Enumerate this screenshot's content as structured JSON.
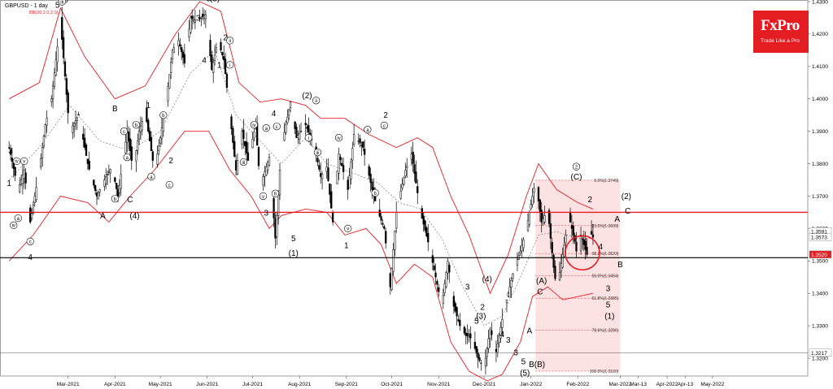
{
  "brand": {
    "name": "FxPro",
    "tagline": "Trade Like a Pro",
    "color": "#e41d23"
  },
  "chart_data": {
    "type": "candlestick",
    "title": "GBPUSD - 1 day",
    "indicator_label": "BB(20,2.0,2,0)",
    "ylim": [
      1.3145,
      1.4305
    ],
    "yticks": [
      "1.4300",
      "1.4200",
      "1.4100",
      "1.4000",
      "1.3900",
      "1.3800",
      "1.3700",
      "1.3600",
      "1.3500",
      "1.3400",
      "1.3300",
      "1.3200"
    ],
    "xticks": [
      {
        "label": "Mar-2021",
        "day": 39
      },
      {
        "label": "Apr-2021",
        "day": 70
      },
      {
        "label": "May-2021",
        "day": 100
      },
      {
        "label": "Jun-2021",
        "day": 131
      },
      {
        "label": "Jul-2021",
        "day": 161
      },
      {
        "label": "Aug-2021",
        "day": 192
      },
      {
        "label": "Sep-2021",
        "day": 223
      },
      {
        "label": "Oct-2021",
        "day": 253
      },
      {
        "label": "Nov-2021",
        "day": 284
      },
      {
        "label": "Dec-2021",
        "day": 314
      },
      {
        "label": "Jan-2022",
        "day": 345
      },
      {
        "label": "Feb-2022",
        "day": 376
      },
      {
        "label": "Mar-2022",
        "day": 404
      },
      {
        "label": "Mar-13",
        "day": 416
      },
      {
        "label": "Apr-2022",
        "day": 435
      },
      {
        "label": "Apr-13",
        "day": 447
      },
      {
        "label": "May-2022",
        "day": 465
      }
    ],
    "price_path": [
      [
        0,
        1.385
      ],
      [
        6,
        1.372
      ],
      [
        10,
        1.378
      ],
      [
        14,
        1.362
      ],
      [
        20,
        1.378
      ],
      [
        24,
        1.392
      ],
      [
        28,
        1.4
      ],
      [
        34,
        1.424
      ],
      [
        40,
        1.39
      ],
      [
        46,
        1.395
      ],
      [
        52,
        1.38
      ],
      [
        58,
        1.37
      ],
      [
        64,
        1.376
      ],
      [
        68,
        1.379
      ],
      [
        72,
        1.37
      ],
      [
        78,
        1.39
      ],
      [
        82,
        1.378
      ],
      [
        86,
        1.39
      ],
      [
        90,
        1.396
      ],
      [
        96,
        1.378
      ],
      [
        100,
        1.388
      ],
      [
        104,
        1.4
      ],
      [
        108,
        1.415
      ],
      [
        112,
        1.418
      ],
      [
        116,
        1.411
      ],
      [
        120,
        1.425
      ],
      [
        124,
        1.424
      ],
      [
        130,
        1.426
      ],
      [
        134,
        1.409
      ],
      [
        138,
        1.418
      ],
      [
        142,
        1.412
      ],
      [
        150,
        1.378
      ],
      [
        154,
        1.39
      ],
      [
        158,
        1.381
      ],
      [
        163,
        1.392
      ],
      [
        166,
        1.373
      ],
      [
        172,
        1.382
      ],
      [
        176,
        1.357
      ],
      [
        180,
        1.385
      ],
      [
        186,
        1.399
      ],
      [
        190,
        1.388
      ],
      [
        196,
        1.392
      ],
      [
        202,
        1.385
      ],
      [
        206,
        1.376
      ],
      [
        210,
        1.379
      ],
      [
        214,
        1.362
      ],
      [
        218,
        1.383
      ],
      [
        224,
        1.372
      ],
      [
        228,
        1.389
      ],
      [
        234,
        1.385
      ],
      [
        240,
        1.372
      ],
      [
        244,
        1.365
      ],
      [
        248,
        1.36
      ],
      [
        252,
        1.342
      ],
      [
        256,
        1.365
      ],
      [
        262,
        1.378
      ],
      [
        266,
        1.383
      ],
      [
        272,
        1.365
      ],
      [
        278,
        1.354
      ],
      [
        282,
        1.345
      ],
      [
        286,
        1.336
      ],
      [
        290,
        1.35
      ],
      [
        294,
        1.336
      ],
      [
        298,
        1.33
      ],
      [
        302,
        1.327
      ],
      [
        306,
        1.326
      ],
      [
        310,
        1.32
      ],
      [
        314,
        1.317
      ],
      [
        318,
        1.329
      ],
      [
        322,
        1.322
      ],
      [
        326,
        1.332
      ],
      [
        330,
        1.34
      ],
      [
        334,
        1.348
      ],
      [
        338,
        1.353
      ],
      [
        342,
        1.36
      ],
      [
        348,
        1.3749
      ],
      [
        352,
        1.362
      ],
      [
        356,
        1.366
      ],
      [
        360,
        1.348
      ],
      [
        362,
        1.341
      ],
      [
        366,
        1.352
      ],
      [
        370,
        1.364
      ],
      [
        374,
        1.356
      ],
      [
        376,
        1.35
      ],
      [
        378,
        1.358
      ],
      [
        382,
        1.352
      ],
      [
        384,
        1.3591
      ],
      [
        386,
        1.3573
      ]
    ],
    "bollinger": {
      "upper": [
        [
          0,
          1.4
        ],
        [
          20,
          1.405
        ],
        [
          34,
          1.428
        ],
        [
          50,
          1.413
        ],
        [
          70,
          1.4
        ],
        [
          90,
          1.404
        ],
        [
          110,
          1.42
        ],
        [
          126,
          1.43
        ],
        [
          140,
          1.427
        ],
        [
          152,
          1.405
        ],
        [
          166,
          1.399
        ],
        [
          180,
          1.4
        ],
        [
          196,
          1.398
        ],
        [
          206,
          1.394
        ],
        [
          222,
          1.394
        ],
        [
          238,
          1.389
        ],
        [
          256,
          1.385
        ],
        [
          270,
          1.388
        ],
        [
          280,
          1.385
        ],
        [
          292,
          1.37
        ],
        [
          304,
          1.358
        ],
        [
          318,
          1.34
        ],
        [
          330,
          1.352
        ],
        [
          342,
          1.37
        ],
        [
          350,
          1.38
        ],
        [
          362,
          1.372
        ],
        [
          376,
          1.368
        ],
        [
          386,
          1.366
        ]
      ],
      "middle": [
        [
          0,
          1.375
        ],
        [
          20,
          1.385
        ],
        [
          40,
          1.398
        ],
        [
          60,
          1.387
        ],
        [
          80,
          1.384
        ],
        [
          100,
          1.39
        ],
        [
          120,
          1.408
        ],
        [
          136,
          1.415
        ],
        [
          150,
          1.395
        ],
        [
          166,
          1.387
        ],
        [
          180,
          1.38
        ],
        [
          196,
          1.388
        ],
        [
          210,
          1.38
        ],
        [
          228,
          1.377
        ],
        [
          244,
          1.374
        ],
        [
          258,
          1.368
        ],
        [
          272,
          1.366
        ],
        [
          286,
          1.357
        ],
        [
          300,
          1.342
        ],
        [
          314,
          1.33
        ],
        [
          326,
          1.333
        ],
        [
          338,
          1.345
        ],
        [
          350,
          1.358
        ],
        [
          362,
          1.359
        ],
        [
          376,
          1.357
        ],
        [
          386,
          1.357
        ]
      ],
      "lower": [
        [
          0,
          1.35
        ],
        [
          16,
          1.358
        ],
        [
          34,
          1.37
        ],
        [
          52,
          1.368
        ],
        [
          66,
          1.362
        ],
        [
          80,
          1.37
        ],
        [
          96,
          1.378
        ],
        [
          116,
          1.39
        ],
        [
          132,
          1.39
        ],
        [
          146,
          1.378
        ],
        [
          160,
          1.37
        ],
        [
          172,
          1.36
        ],
        [
          180,
          1.364
        ],
        [
          196,
          1.366
        ],
        [
          210,
          1.365
        ],
        [
          222,
          1.358
        ],
        [
          236,
          1.36
        ],
        [
          246,
          1.355
        ],
        [
          256,
          1.343
        ],
        [
          268,
          1.349
        ],
        [
          280,
          1.345
        ],
        [
          292,
          1.325
        ],
        [
          304,
          1.316
        ],
        [
          316,
          1.313
        ],
        [
          326,
          1.315
        ],
        [
          338,
          1.325
        ],
        [
          346,
          1.339
        ],
        [
          356,
          1.342
        ],
        [
          366,
          1.338
        ],
        [
          376,
          1.339
        ],
        [
          386,
          1.34
        ]
      ]
    },
    "horizontal_lines": [
      {
        "price": 1.365,
        "color": "#e41d23",
        "width": 1.4
      },
      {
        "price": 1.351,
        "color": "#000000",
        "width": 1.2
      },
      {
        "price": 1.3217,
        "color": "#555555",
        "width": 0.6
      }
    ],
    "price_tags": [
      {
        "price": 1.3591,
        "text": "1.3591",
        "bg": "#ffffff",
        "fg": "#000000"
      },
      {
        "price": 1.3573,
        "text": "1.3573",
        "bg": "#ffffff",
        "fg": "#000000"
      },
      {
        "price": 1.352,
        "text": "1.3520",
        "bg": "#e41d23",
        "fg": "#ffffff"
      },
      {
        "price": 1.3217,
        "text": "1.3217",
        "bg": "#ffffff",
        "fg": "#000000"
      }
    ],
    "fibonacci": {
      "day_start": 348,
      "day_end": 404,
      "fill": "rgba(228,29,35,0.13)",
      "levels": [
        {
          "price": 1.3749,
          "label": "0.0%(1.3749)"
        },
        {
          "price": 1.3609,
          "label": "23.6%(1.3609)"
        },
        {
          "price": 1.3523,
          "label": "38.2%(1.3523)"
        },
        {
          "price": 1.3454,
          "label": "50.0%(1.3454)"
        },
        {
          "price": 1.3385,
          "label": "61.8%(1.3385)"
        },
        {
          "price": 1.3286,
          "label": "78.6%(1.3286)"
        },
        {
          "price": 1.316,
          "label": "100.0%(1.3160)"
        }
      ]
    },
    "highlight_circle": {
      "day": 379,
      "price": 1.3525
    },
    "wave_labels": [
      {
        "day": 1,
        "price": 1.384,
        "text": "3"
      },
      {
        "day": 0,
        "price": 1.374,
        "text": "1"
      },
      {
        "day": 5,
        "price": 1.3808,
        "text": "iv",
        "circle": true
      },
      {
        "day": 10,
        "price": 1.3808,
        "text": "v",
        "circle": true
      },
      {
        "day": 6,
        "price": 1.3632,
        "text": "a",
        "circle": true
      },
      {
        "day": 3,
        "price": 1.361,
        "text": "iv",
        "circle": true
      },
      {
        "day": 14,
        "price": 1.356,
        "text": "c",
        "circle": true
      },
      {
        "day": 14,
        "price": 1.3512,
        "text": "4"
      },
      {
        "day": 32,
        "price": 1.429,
        "text": "5"
      },
      {
        "day": 36,
        "price": 1.431,
        "text": "(3)"
      },
      {
        "day": 35,
        "price": 1.43,
        "text": "iii",
        "circle": true
      },
      {
        "day": 62,
        "price": 1.364,
        "text": "A"
      },
      {
        "day": 70,
        "price": 1.3692,
        "text": "b",
        "circle": true
      },
      {
        "day": 80,
        "price": 1.369,
        "text": "C"
      },
      {
        "day": 83,
        "price": 1.364,
        "text": "(4)"
      },
      {
        "day": 70,
        "price": 1.397,
        "text": "B"
      },
      {
        "day": 78,
        "price": 1.382,
        "text": "a",
        "circle": true
      },
      {
        "day": 76,
        "price": 1.39,
        "text": "c",
        "circle": true
      },
      {
        "day": 84,
        "price": 1.392,
        "text": "b",
        "circle": true
      },
      {
        "day": 92,
        "price": 1.398,
        "text": "1"
      },
      {
        "day": 94,
        "price": 1.376,
        "text": "a",
        "circle": true
      },
      {
        "day": 106,
        "price": 1.3735,
        "text": "c",
        "circle": true
      },
      {
        "day": 107,
        "price": 1.381,
        "text": "2"
      },
      {
        "day": 102,
        "price": 1.395,
        "text": "b",
        "circle": true
      },
      {
        "day": 125,
        "price": 1.425,
        "text": "3"
      },
      {
        "day": 132,
        "price": 1.431,
        "text": "5"
      },
      {
        "day": 136,
        "price": 1.431,
        "text": "(5)"
      },
      {
        "day": 129,
        "price": 1.412,
        "text": "4"
      },
      {
        "day": 143,
        "price": 1.419,
        "text": "2"
      },
      {
        "day": 146,
        "price": 1.418,
        "text": "ii",
        "circle": true
      },
      {
        "day": 139,
        "price": 1.4105,
        "text": "1"
      },
      {
        "day": 146,
        "price": 1.4105,
        "text": "i",
        "circle": true
      },
      {
        "day": 155,
        "price": 1.3805,
        "text": "iii",
        "circle": true
      },
      {
        "day": 162,
        "price": 1.392,
        "text": "iv",
        "circle": true
      },
      {
        "day": 170,
        "price": 1.391,
        "text": "a",
        "circle": true
      },
      {
        "day": 175,
        "price": 1.3955,
        "text": "4"
      },
      {
        "day": 177,
        "price": 1.3915,
        "text": "c",
        "circle": true
      },
      {
        "day": 168,
        "price": 1.37,
        "text": "v",
        "circle": true
      },
      {
        "day": 170,
        "price": 1.3648,
        "text": "3"
      },
      {
        "day": 176,
        "price": 1.3708,
        "text": "b",
        "circle": true
      },
      {
        "day": 197,
        "price": 1.401,
        "text": "(2)"
      },
      {
        "day": 203,
        "price": 1.3995,
        "text": "ii",
        "circle": true
      },
      {
        "day": 198,
        "price": 1.388,
        "text": "i",
        "circle": true
      },
      {
        "day": 188,
        "price": 1.357,
        "text": "5"
      },
      {
        "day": 188,
        "price": 1.3525,
        "text": "(1)"
      },
      {
        "day": 218,
        "price": 1.388,
        "text": "iv",
        "circle": true
      },
      {
        "day": 204,
        "price": 1.3835,
        "text": "iii",
        "circle": true
      },
      {
        "day": 224,
        "price": 1.36,
        "text": "v",
        "circle": true
      },
      {
        "day": 223,
        "price": 1.3548,
        "text": "1"
      },
      {
        "day": 249,
        "price": 1.395,
        "text": "2"
      },
      {
        "day": 248,
        "price": 1.3918,
        "text": "c",
        "circle": true
      },
      {
        "day": 237,
        "price": 1.3905,
        "text": "a",
        "circle": true
      },
      {
        "day": 242,
        "price": 1.371,
        "text": "b",
        "circle": true
      },
      {
        "day": 316,
        "price": 1.3445,
        "text": "(4)"
      },
      {
        "day": 303,
        "price": 1.342,
        "text": "3"
      },
      {
        "day": 313,
        "price": 1.3358,
        "text": "2"
      },
      {
        "day": 309,
        "price": 1.3315,
        "text": "5"
      },
      {
        "day": 312,
        "price": 1.333,
        "text": "(3)"
      },
      {
        "day": 326,
        "price": 1.3274,
        "text": "4"
      },
      {
        "day": 330,
        "price": 1.3256,
        "text": "3"
      },
      {
        "day": 344,
        "price": 1.3285,
        "text": "A"
      },
      {
        "day": 335,
        "price": 1.3218,
        "text": "3"
      },
      {
        "day": 340,
        "price": 1.319,
        "text": "5"
      },
      {
        "day": 341,
        "price": 1.3155,
        "text": "(5)"
      },
      {
        "day": 349,
        "price": 1.3181,
        "text": "B(B)"
      },
      {
        "day": 352,
        "price": 1.344,
        "text": "(A)"
      },
      {
        "day": 351,
        "price": 1.3405,
        "text": "C"
      },
      {
        "day": 375,
        "price": 1.3791,
        "text": "2",
        "circle": true
      },
      {
        "day": 375,
        "price": 1.376,
        "text": "(C)"
      },
      {
        "day": 384,
        "price": 1.369,
        "text": "2"
      },
      {
        "day": 381,
        "price": 1.356,
        "text": "1"
      },
      {
        "day": 391,
        "price": 1.3545,
        "text": "4"
      },
      {
        "day": 396,
        "price": 1.3415,
        "text": "3"
      },
      {
        "day": 396,
        "price": 1.3365,
        "text": "5"
      },
      {
        "day": 397,
        "price": 1.333,
        "text": "(1)"
      },
      {
        "day": 402,
        "price": 1.363,
        "text": "A"
      },
      {
        "day": 408,
        "price": 1.37,
        "text": "(2)"
      },
      {
        "day": 409,
        "price": 1.3655,
        "text": "C"
      },
      {
        "day": 404,
        "price": 1.349,
        "text": "B"
      }
    ]
  }
}
